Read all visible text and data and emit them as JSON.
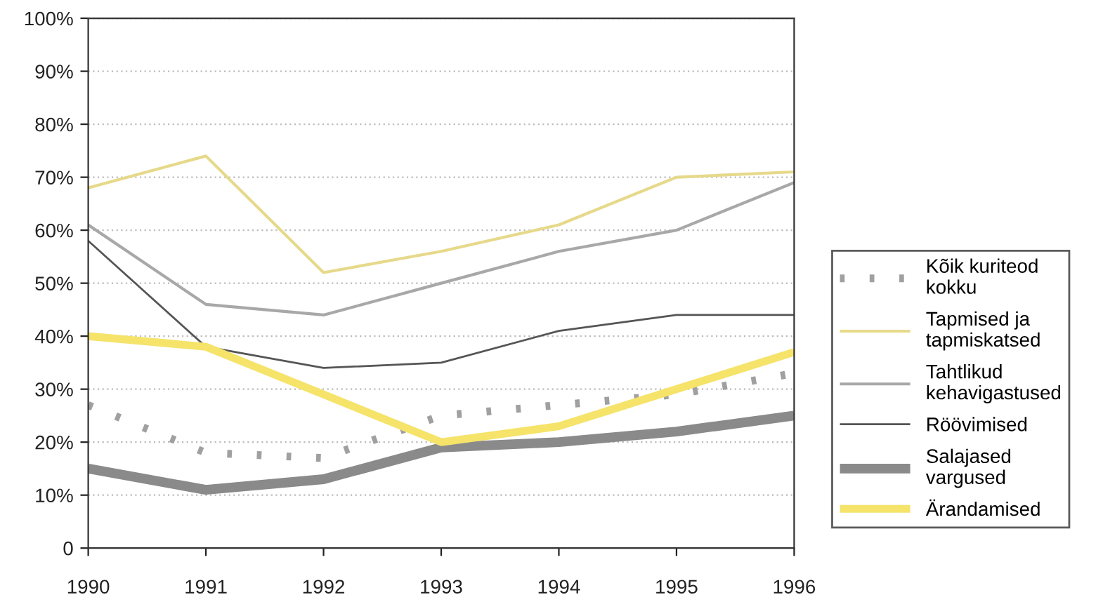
{
  "chart_data": {
    "type": "line",
    "x": [
      1990,
      1991,
      1992,
      1993,
      1994,
      1995,
      1996
    ],
    "xlim": [
      1990,
      1996
    ],
    "xticks": [
      1990,
      1991,
      1992,
      1993,
      1994,
      1995,
      1996
    ],
    "ylim": [
      0,
      100
    ],
    "yticks": [
      {
        "value": 0,
        "label": "0"
      },
      {
        "value": 10,
        "label": "10%"
      },
      {
        "value": 20,
        "label": "20%"
      },
      {
        "value": 30,
        "label": "30%"
      },
      {
        "value": 40,
        "label": "40%"
      },
      {
        "value": 50,
        "label": "50%"
      },
      {
        "value": 60,
        "label": "60%"
      },
      {
        "value": 70,
        "label": "70%"
      },
      {
        "value": 80,
        "label": "80%"
      },
      {
        "value": 90,
        "label": "90%"
      },
      {
        "value": 100,
        "label": "100%"
      }
    ],
    "grid": "y",
    "legend": "right",
    "marker": "none",
    "series": [
      {
        "name": "Kõik kuriteod kokku",
        "color": "#a0a0a0",
        "line_style": "dotted",
        "values": [
          27,
          18,
          17,
          25,
          27,
          29,
          33
        ]
      },
      {
        "name": "Tapmised ja tapmiskatsed",
        "color": "#e6d98a",
        "values": [
          68,
          74,
          52,
          56,
          61,
          70,
          71
        ]
      },
      {
        "name": "Tahtlikud kehavigastused",
        "color": "#a8a8a8",
        "values": [
          61,
          46,
          44,
          50,
          56,
          60,
          69
        ]
      },
      {
        "name": "Röövimised",
        "color": "#555555",
        "values": [
          58,
          38,
          34,
          35,
          41,
          44,
          44
        ]
      },
      {
        "name": "Salajased vargused",
        "color": "#8a8a8a",
        "values": [
          15,
          11,
          13,
          19,
          20,
          22,
          25
        ]
      },
      {
        "name": "Ärandamised",
        "color": "#f5e36a",
        "values": [
          40,
          38,
          29,
          20,
          23,
          30,
          37
        ]
      }
    ]
  }
}
